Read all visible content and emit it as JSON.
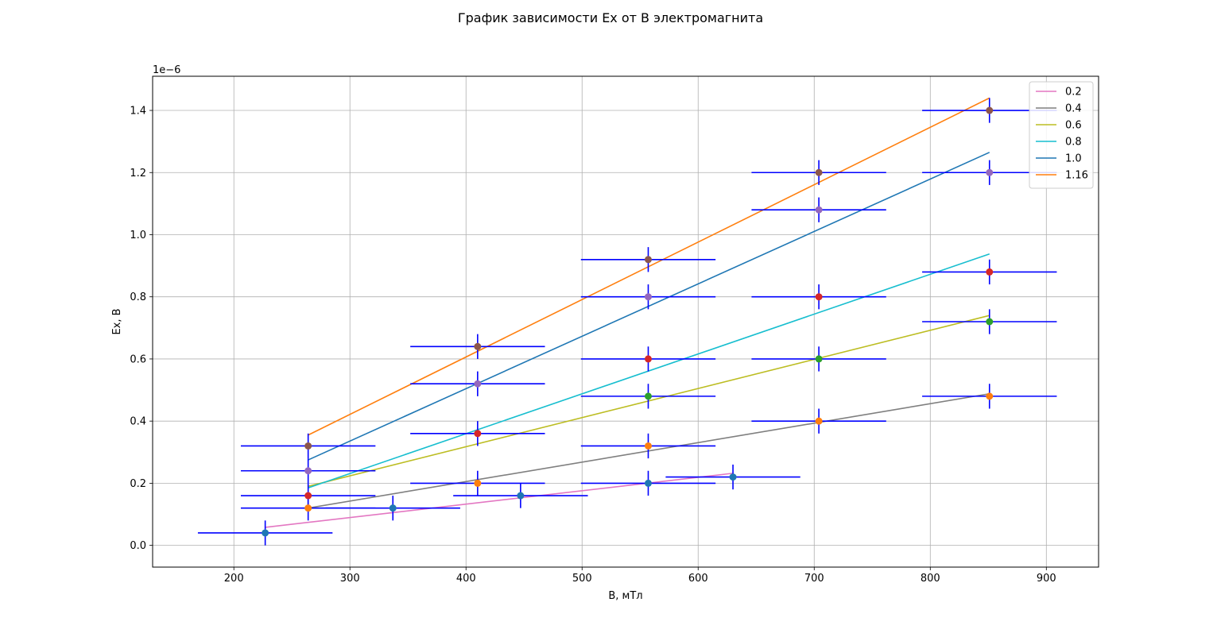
{
  "chart_data": {
    "type": "scatter",
    "title": "График зависимости Ex от B электромагнита",
    "xlabel": "B, мТл",
    "ylabel": "Ex, B",
    "y_scale_label": "1e−6",
    "xlim": [
      130,
      945
    ],
    "ylim": [
      -0.07,
      1.51
    ],
    "x_ticks": [
      200,
      300,
      400,
      500,
      600,
      700,
      800,
      900
    ],
    "y_ticks": [
      0.0,
      0.2,
      0.4,
      0.6,
      0.8,
      1.0,
      1.2,
      1.4
    ],
    "grid": true,
    "legend_position": "top-right",
    "error_bar_color": "#0000ff",
    "x_error": 58,
    "y_error": 0.04,
    "fit_lines": [
      {
        "name": "0.2",
        "color": "#e377c2",
        "x": [
          227,
          630
        ],
        "y": [
          0.058,
          0.232
        ]
      },
      {
        "name": "0.4",
        "color": "#7f7f7f",
        "x": [
          264,
          851
        ],
        "y": [
          0.12,
          0.488
        ]
      },
      {
        "name": "0.6",
        "color": "#bcbd22",
        "x": [
          264,
          851
        ],
        "y": [
          0.19,
          0.74
        ]
      },
      {
        "name": "0.8",
        "color": "#17becf",
        "x": [
          264,
          851
        ],
        "y": [
          0.185,
          0.938
        ]
      },
      {
        "name": "1.0",
        "color": "#1f77b4",
        "x": [
          264,
          851
        ],
        "y": [
          0.275,
          1.265
        ]
      },
      {
        "name": "1.16",
        "color": "#ff7f0e",
        "x": [
          264,
          851
        ],
        "y": [
          0.355,
          1.44
        ]
      }
    ],
    "point_series": [
      {
        "color": "#1f77b4",
        "points": [
          [
            227,
            0.04
          ],
          [
            337,
            0.12
          ],
          [
            447,
            0.16
          ],
          [
            557,
            0.2
          ],
          [
            630,
            0.22
          ]
        ]
      },
      {
        "color": "#ff7f0e",
        "points": [
          [
            264,
            0.12
          ],
          [
            410,
            0.2
          ],
          [
            557,
            0.32
          ],
          [
            704,
            0.4
          ],
          [
            851,
            0.48
          ]
        ]
      },
      {
        "color": "#2ca02c",
        "points": [
          [
            557,
            0.48
          ],
          [
            704,
            0.6
          ],
          [
            851,
            0.72
          ]
        ]
      },
      {
        "color": "#d62728",
        "points": [
          [
            264,
            0.16
          ],
          [
            410,
            0.36
          ],
          [
            557,
            0.6
          ],
          [
            704,
            0.8
          ],
          [
            851,
            0.88
          ]
        ]
      },
      {
        "color": "#9467bd",
        "points": [
          [
            264,
            0.24
          ],
          [
            410,
            0.52
          ],
          [
            557,
            0.8
          ],
          [
            704,
            1.08
          ],
          [
            851,
            1.2
          ]
        ]
      },
      {
        "color": "#8c564b",
        "points": [
          [
            264,
            0.32
          ],
          [
            410,
            0.64
          ],
          [
            557,
            0.92
          ],
          [
            704,
            1.2
          ],
          [
            851,
            1.4
          ]
        ]
      }
    ]
  }
}
